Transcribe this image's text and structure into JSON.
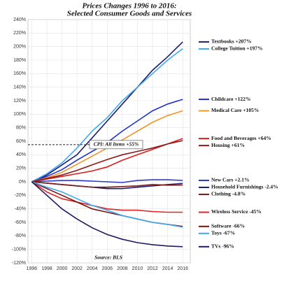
{
  "chart_data": {
    "type": "line",
    "title": "Prices Changes 1996 to 2016:",
    "subtitle": "Selected Consumer Goods and Services",
    "source": "Source: BLS",
    "x": [
      1996,
      1998,
      2000,
      2002,
      2004,
      2006,
      2008,
      2010,
      2012,
      2014,
      2016
    ],
    "xlim": [
      1995.5,
      2017
    ],
    "xticks": [
      1996,
      1998,
      2000,
      2002,
      2004,
      2006,
      2008,
      2010,
      2012,
      2014,
      2016
    ],
    "ylim": [
      -120,
      240
    ],
    "yticks": [
      {
        "value": -120,
        "label": "-120%"
      },
      {
        "value": -100,
        "label": "-100%"
      },
      {
        "value": -80,
        "label": "-80%"
      },
      {
        "value": -60,
        "label": "-60%"
      },
      {
        "value": -40,
        "label": "-40%"
      },
      {
        "value": -20,
        "label": "-20%"
      },
      {
        "value": 0,
        "label": "0%"
      },
      {
        "value": 20,
        "label": "20%"
      },
      {
        "value": 40,
        "label": "40%"
      },
      {
        "value": 60,
        "label": "60%"
      },
      {
        "value": 80,
        "label": "80%"
      },
      {
        "value": 100,
        "label": "100%"
      },
      {
        "value": 120,
        "label": "120%"
      },
      {
        "value": 140,
        "label": "140%"
      },
      {
        "value": 160,
        "label": "160%"
      },
      {
        "value": 180,
        "label": "180%"
      },
      {
        "value": 200,
        "label": "200%"
      },
      {
        "value": 220,
        "label": "220%"
      },
      {
        "value": 240,
        "label": "240%"
      }
    ],
    "grid": true,
    "annotations": [
      {
        "text": "CPI: All Items +55%",
        "value": 55
      }
    ],
    "series": [
      {
        "name": "Textbooks +207%",
        "color": "#1c1c70",
        "values": [
          0,
          10,
          25,
          40,
          65,
          90,
          115,
          140,
          165,
          185,
          207
        ]
      },
      {
        "name": "College Tuition +197%",
        "color": "#3fa9f0",
        "values": [
          0,
          12,
          28,
          50,
          75,
          95,
          120,
          140,
          160,
          180,
          197
        ]
      },
      {
        "name": "Childcare +122%",
        "color": "#2233cc",
        "values": [
          0,
          8,
          18,
          32,
          45,
          58,
          75,
          90,
          105,
          115,
          122
        ]
      },
      {
        "name": "Medical Care +105%",
        "color": "#f0962a",
        "values": [
          0,
          6,
          14,
          26,
          38,
          50,
          62,
          75,
          88,
          98,
          105
        ]
      },
      {
        "name": "Food and Beverages +64%",
        "color": "#d62020",
        "values": [
          0,
          4,
          8,
          12,
          16,
          22,
          32,
          40,
          48,
          56,
          64
        ]
      },
      {
        "name": "Housing +61%",
        "color": "#8b1a1a",
        "values": [
          0,
          5,
          10,
          17,
          25,
          33,
          40,
          45,
          50,
          56,
          61
        ]
      },
      {
        "name": "New Cars +2.1%",
        "color": "#2a3ad0",
        "values": [
          0,
          1,
          2,
          2,
          1,
          0,
          -1,
          2,
          3,
          3,
          2.1
        ]
      },
      {
        "name": "Household Furnishings -2.4%",
        "color": "#1c1c70",
        "values": [
          0,
          -2,
          -4,
          -6,
          -8,
          -10,
          -10,
          -8,
          -6,
          -4,
          -2.4
        ]
      },
      {
        "name": "Clothing -4.8%",
        "color": "#7a1a1a",
        "values": [
          0,
          -2,
          -4,
          -6,
          -8,
          -8,
          -7,
          -6,
          -4,
          -5,
          -4.8
        ]
      },
      {
        "name": "Wireless Service -45%",
        "color": "#e02525",
        "values": [
          0,
          -15,
          -25,
          -30,
          -35,
          -40,
          -42,
          -42,
          -44,
          -45,
          -45
        ]
      },
      {
        "name": "Software -66%",
        "color": "#7a1010",
        "values": [
          0,
          -10,
          -20,
          -30,
          -40,
          -45,
          -50,
          -55,
          -60,
          -63,
          -66
        ]
      },
      {
        "name": "Toys -67%",
        "color": "#3fa9f0",
        "values": [
          0,
          -8,
          -15,
          -25,
          -35,
          -42,
          -50,
          -55,
          -60,
          -63,
          -67
        ]
      },
      {
        "name": "TVs -96%",
        "color": "#1c1c5e",
        "values": [
          0,
          -20,
          -40,
          -55,
          -68,
          -78,
          -85,
          -90,
          -93,
          -95,
          -96
        ]
      }
    ]
  }
}
